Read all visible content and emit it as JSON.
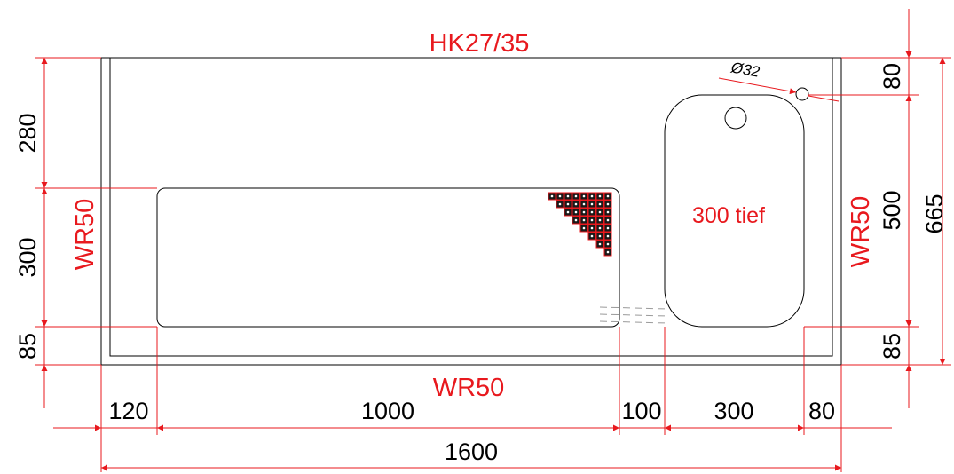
{
  "labels": {
    "top_title": "HK27/35",
    "bottom_title": "WR50",
    "left_side": "WR50",
    "right_side": "WR50",
    "basin_depth": "300 tief",
    "tap_hole": "Ø32"
  },
  "dimensions": {
    "horizontal": {
      "left_margin": "120",
      "drainer_width": "1000",
      "gap": "100",
      "basin_width": "300",
      "right_margin": "80",
      "total_width": "1600"
    },
    "vertical_left": {
      "top": "280",
      "drainer_depth": "300",
      "bottom": "85"
    },
    "vertical_right": {
      "top": "80",
      "basin_depth": "500",
      "bottom": "85",
      "total_depth": "665"
    }
  },
  "colors": {
    "dimension": "#e8191e",
    "outline": "#000000",
    "drain_grid": "#e8191e"
  }
}
